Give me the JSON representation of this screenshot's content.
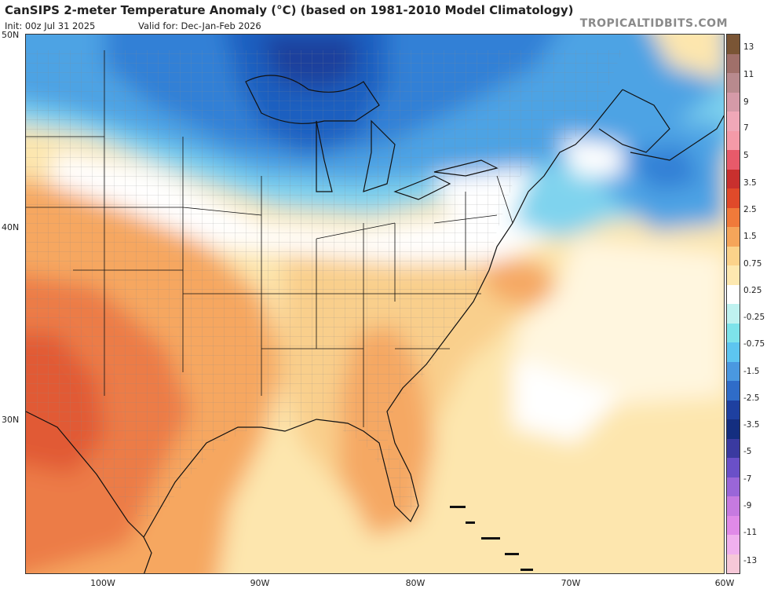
{
  "header": {
    "title": "CanSIPS 2-meter Temperature Anomaly (°C) (based on 1981-2010 Model Climatology)",
    "init": "Init: 00z Jul 31 2025",
    "valid": "Valid for: Dec-Jan-Feb 2026",
    "brand": "TROPICALTIDBITS.COM"
  },
  "axes": {
    "lat_labels": [
      "50N",
      "40N",
      "30N"
    ],
    "lon_labels": [
      "100W",
      "90W",
      "80W",
      "70W",
      "60W"
    ]
  },
  "colorbar": {
    "labels": [
      "13",
      "11",
      "9",
      "7",
      "5",
      "3.5",
      "2.5",
      "1.5",
      "0.75",
      "0.25",
      "-0.25",
      "-0.75",
      "-1.5",
      "-2.5",
      "-3.5",
      "-5",
      "-7",
      "-9",
      "-11",
      "-13"
    ],
    "colors": [
      "#7a5535",
      "#a0706a",
      "#b88a8e",
      "#d59aa8",
      "#f0a8b8",
      "#f49aa8",
      "#e85a6a",
      "#c8302e",
      "#e04a2a",
      "#f07a3a",
      "#f5a55a",
      "#fbd28a",
      "#fde8b0",
      "#ffffff",
      "#bff2f0",
      "#7de3ea",
      "#5dc5f0",
      "#4a98e0",
      "#2f6cc8",
      "#1e40a0",
      "#142e80",
      "#3a3aa0",
      "#6a50c8",
      "#9a66d8",
      "#c67ae0",
      "#e08ae8",
      "#f0b0ee",
      "#f6c8d8"
    ]
  },
  "chart_data": {
    "type": "heatmap",
    "title": "CanSIPS 2-meter Temperature Anomaly (°C)",
    "region": "Eastern United States and western Atlantic",
    "lat_range": [
      22,
      50
    ],
    "lon_range": [
      -105,
      -60
    ],
    "summary": {
      "Great Lakes": -3.5,
      "Upper Midwest": -2.5,
      "Northeast": -1.0,
      "Ohio Valley": 0.0,
      "Southeast": 0.75,
      "Texas": 2.5,
      "Florida": 1.5,
      "Gulf Coast": 0.5,
      "Western Atlantic": 0.5,
      "Nova Scotia": -2.0
    }
  }
}
